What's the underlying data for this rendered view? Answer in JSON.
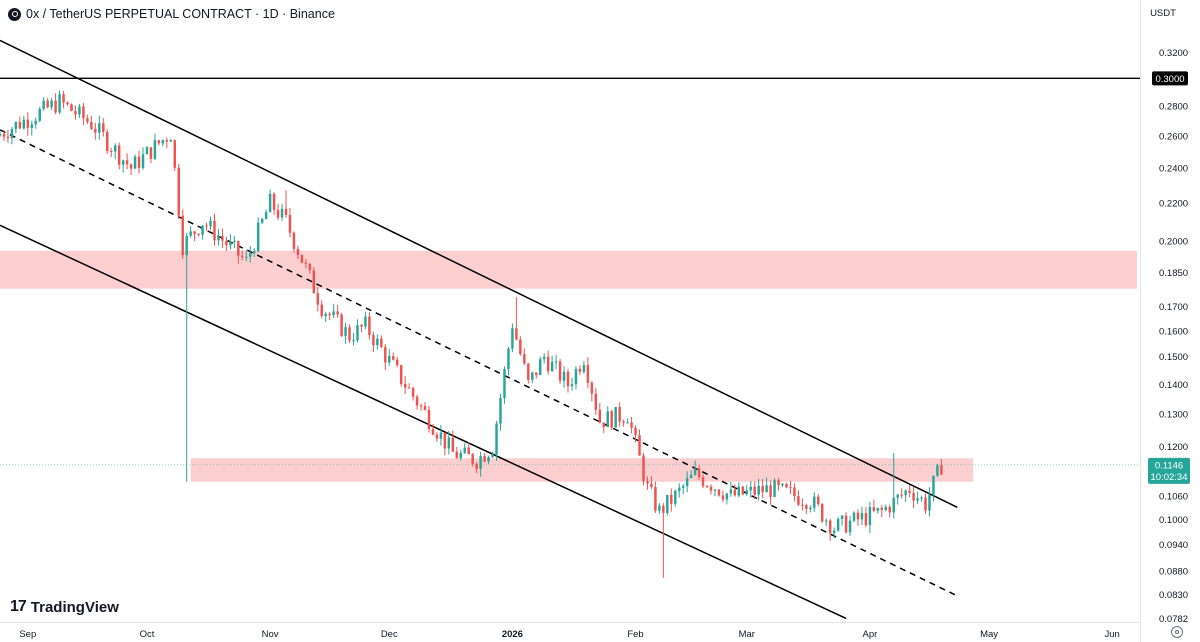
{
  "header": {
    "symbol_title": "0x / TetherUS PERPETUAL CONTRACT · 1D · Binance",
    "currency": "USDT"
  },
  "brand": {
    "name": "TradingView"
  },
  "colors": {
    "up": "#26a69a",
    "down": "#ef5350",
    "zone": "#f7a5a9",
    "channel": "#000000",
    "last_price_tag": "#26a69a"
  },
  "chart_data": {
    "type": "candlestick",
    "timeframe": "1D",
    "x_axis": {
      "labels": [
        "Sep",
        "Oct",
        "Nov",
        "Dec",
        "2026",
        "Feb",
        "Mar",
        "Apr",
        "May",
        "Jun"
      ],
      "range": [
        "2025-08-25",
        "2026-06-08"
      ]
    },
    "y_axis": {
      "scale": "log",
      "range": [
        0.0775,
        0.335
      ],
      "ticks": [
        "0.3200",
        "0.2800",
        "0.2600",
        "0.2400",
        "0.2200",
        "0.2000",
        "0.1850",
        "0.1700",
        "0.1600",
        "0.1500",
        "0.1400",
        "0.1300",
        "0.1200",
        "0.1060",
        "0.1000",
        "0.0940",
        "0.0880",
        "0.0830",
        "0.0782"
      ]
    },
    "horizontal_line": {
      "value": 0.3,
      "label": "0.3000"
    },
    "last_price": {
      "value": 0.1146,
      "label": "0.1146",
      "countdown": "10:02:34"
    },
    "zones": [
      {
        "from": "2025-08-25",
        "to": "end",
        "low": 0.1777,
        "high": 0.1953
      },
      {
        "from": "2025-10-12",
        "to": "2026-04-27",
        "low": 0.1099,
        "high": 0.1165
      }
    ],
    "channel_lines": [
      {
        "role": "upper",
        "style": "solid",
        "from": {
          "date": "2025-08-25",
          "value": 0.3297
        },
        "to": {
          "date": "2026-04-23",
          "value": 0.1031
        }
      },
      {
        "role": "middle",
        "style": "dashed",
        "from": {
          "date": "2025-08-25",
          "value": 0.2639
        },
        "to": {
          "date": "2026-04-23",
          "value": 0.0827
        }
      },
      {
        "role": "lower",
        "style": "solid",
        "from": {
          "date": "2025-08-25",
          "value": 0.2081
        },
        "to": {
          "date": "2026-03-26",
          "value": 0.0782
        }
      }
    ],
    "anchor_points": [
      {
        "date": "2025-08-25",
        "close": 0.26
      },
      {
        "date": "2025-09-10",
        "close": 0.283
      },
      {
        "date": "2025-09-18",
        "close": 0.268
      },
      {
        "date": "2025-09-28",
        "close": 0.24
      },
      {
        "date": "2025-10-08",
        "close": 0.262
      },
      {
        "date": "2025-10-11",
        "close": 0.198
      },
      {
        "date": "2025-10-16",
        "close": 0.21
      },
      {
        "date": "2025-10-27",
        "close": 0.19
      },
      {
        "date": "2025-11-02",
        "close": 0.22
      },
      {
        "date": "2025-11-06",
        "close": 0.21
      },
      {
        "date": "2025-11-15",
        "close": 0.17
      },
      {
        "date": "2025-11-22",
        "close": 0.158
      },
      {
        "date": "2025-11-26",
        "close": 0.162
      },
      {
        "date": "2025-12-05",
        "close": 0.142
      },
      {
        "date": "2025-12-18",
        "close": 0.118
      },
      {
        "date": "2025-12-24",
        "close": 0.116
      },
      {
        "date": "2025-12-28",
        "close": 0.12
      },
      {
        "date": "2026-01-02",
        "close": 0.163
      },
      {
        "date": "2026-01-06",
        "close": 0.14
      },
      {
        "date": "2026-01-10",
        "close": 0.15
      },
      {
        "date": "2026-01-16",
        "close": 0.14
      },
      {
        "date": "2026-01-20",
        "close": 0.15
      },
      {
        "date": "2026-01-24",
        "close": 0.128
      },
      {
        "date": "2026-01-31",
        "close": 0.13
      },
      {
        "date": "2026-02-05",
        "close": 0.108
      },
      {
        "date": "2026-02-08",
        "close": 0.102
      },
      {
        "date": "2026-02-12",
        "close": 0.106
      },
      {
        "date": "2026-02-17",
        "close": 0.112
      },
      {
        "date": "2026-02-26",
        "close": 0.106
      },
      {
        "date": "2026-03-08",
        "close": 0.108
      },
      {
        "date": "2026-03-18",
        "close": 0.105
      },
      {
        "date": "2026-03-24",
        "close": 0.098
      },
      {
        "date": "2026-03-30",
        "close": 0.1
      },
      {
        "date": "2026-04-05",
        "close": 0.102
      },
      {
        "date": "2026-04-12",
        "close": 0.108
      },
      {
        "date": "2026-04-16",
        "close": 0.104
      },
      {
        "date": "2026-04-20",
        "close": 0.1146
      }
    ]
  }
}
